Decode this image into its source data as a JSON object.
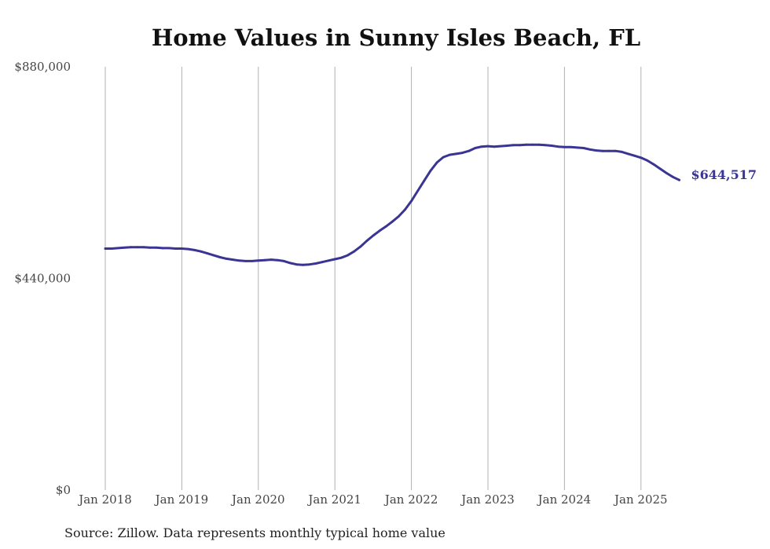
{
  "chart_data": {
    "type": "line",
    "title": "Home Values in Sunny Isles Beach, FL",
    "source": "Source: Zillow. Data represents monthly typical home value",
    "ylim": [
      0,
      880000
    ],
    "y_ticks": [
      {
        "value": 0,
        "label": "$0"
      },
      {
        "value": 440000,
        "label": "$440,000"
      },
      {
        "value": 880000,
        "label": "$880,000"
      }
    ],
    "x_ticks": [
      {
        "value": "2018-01",
        "label": "Jan 2018"
      },
      {
        "value": "2019-01",
        "label": "Jan 2019"
      },
      {
        "value": "2020-01",
        "label": "Jan 2020"
      },
      {
        "value": "2021-01",
        "label": "Jan 2021"
      },
      {
        "value": "2022-01",
        "label": "Jan 2022"
      },
      {
        "value": "2023-01",
        "label": "Jan 2023"
      },
      {
        "value": "2024-01",
        "label": "Jan 2024"
      },
      {
        "value": "2025-01",
        "label": "Jan 2025"
      }
    ],
    "grid": "vertical",
    "line_color": "#3a3494",
    "end_label": "$644,517",
    "series": [
      {
        "values": [
          [
            "2018-01",
            502000
          ],
          [
            "2018-02",
            502000
          ],
          [
            "2018-03",
            503000
          ],
          [
            "2018-04",
            504000
          ],
          [
            "2018-05",
            505000
          ],
          [
            "2018-06",
            505000
          ],
          [
            "2018-07",
            505000
          ],
          [
            "2018-08",
            504000
          ],
          [
            "2018-09",
            504000
          ],
          [
            "2018-10",
            503000
          ],
          [
            "2018-11",
            503000
          ],
          [
            "2018-12",
            502000
          ],
          [
            "2019-01",
            502000
          ],
          [
            "2019-02",
            501000
          ],
          [
            "2019-03",
            499000
          ],
          [
            "2019-04",
            496000
          ],
          [
            "2019-05",
            492000
          ],
          [
            "2019-06",
            488000
          ],
          [
            "2019-07",
            484000
          ],
          [
            "2019-08",
            481000
          ],
          [
            "2019-09",
            479000
          ],
          [
            "2019-10",
            477000
          ],
          [
            "2019-11",
            476000
          ],
          [
            "2019-12",
            476000
          ],
          [
            "2020-01",
            477000
          ],
          [
            "2020-02",
            478000
          ],
          [
            "2020-03",
            479000
          ],
          [
            "2020-04",
            478000
          ],
          [
            "2020-05",
            476000
          ],
          [
            "2020-06",
            472000
          ],
          [
            "2020-07",
            469000
          ],
          [
            "2020-08",
            468000
          ],
          [
            "2020-09",
            469000
          ],
          [
            "2020-10",
            471000
          ],
          [
            "2020-11",
            474000
          ],
          [
            "2020-12",
            477000
          ],
          [
            "2021-01",
            480000
          ],
          [
            "2021-02",
            483000
          ],
          [
            "2021-03",
            488000
          ],
          [
            "2021-04",
            496000
          ],
          [
            "2021-05",
            506000
          ],
          [
            "2021-06",
            518000
          ],
          [
            "2021-07",
            529000
          ],
          [
            "2021-08",
            539000
          ],
          [
            "2021-09",
            548000
          ],
          [
            "2021-10",
            558000
          ],
          [
            "2021-11",
            569000
          ],
          [
            "2021-12",
            583000
          ],
          [
            "2022-01",
            601000
          ],
          [
            "2022-02",
            622000
          ],
          [
            "2022-03",
            643000
          ],
          [
            "2022-04",
            664000
          ],
          [
            "2022-05",
            681000
          ],
          [
            "2022-06",
            692000
          ],
          [
            "2022-07",
            697000
          ],
          [
            "2022-08",
            699000
          ],
          [
            "2022-09",
            701000
          ],
          [
            "2022-10",
            705000
          ],
          [
            "2022-11",
            711000
          ],
          [
            "2022-12",
            714000
          ],
          [
            "2023-01",
            715000
          ],
          [
            "2023-02",
            714000
          ],
          [
            "2023-03",
            715000
          ],
          [
            "2023-04",
            716000
          ],
          [
            "2023-05",
            717000
          ],
          [
            "2023-06",
            717000
          ],
          [
            "2023-07",
            718000
          ],
          [
            "2023-08",
            718000
          ],
          [
            "2023-09",
            718000
          ],
          [
            "2023-10",
            717000
          ],
          [
            "2023-11",
            716000
          ],
          [
            "2023-12",
            714000
          ],
          [
            "2024-01",
            713000
          ],
          [
            "2024-02",
            713000
          ],
          [
            "2024-03",
            712000
          ],
          [
            "2024-04",
            711000
          ],
          [
            "2024-05",
            708000
          ],
          [
            "2024-06",
            706000
          ],
          [
            "2024-07",
            705000
          ],
          [
            "2024-08",
            705000
          ],
          [
            "2024-09",
            705000
          ],
          [
            "2024-10",
            703000
          ],
          [
            "2024-11",
            699000
          ],
          [
            "2024-12",
            695000
          ],
          [
            "2025-01",
            691000
          ],
          [
            "2025-02",
            685000
          ],
          [
            "2025-03",
            677000
          ],
          [
            "2025-04",
            668000
          ],
          [
            "2025-05",
            659000
          ],
          [
            "2025-06",
            651000
          ],
          [
            "2025-07",
            644517
          ]
        ]
      }
    ]
  }
}
